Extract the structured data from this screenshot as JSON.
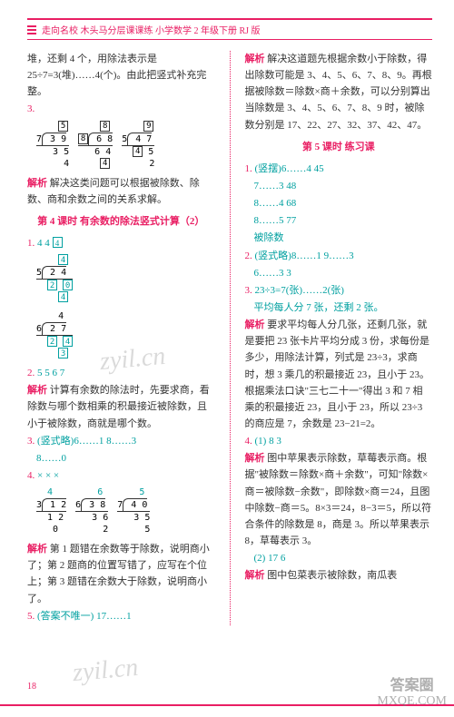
{
  "header": {
    "title": "走向名校  木头马分层课课练  小学数学 2 年级下册  RJ 版"
  },
  "col1": {
    "p1": "堆，还剩 4 个，用除法表示是 25÷7=3(堆)……4(个)。由此把竖式补充完整。",
    "q3_label": "3.",
    "q3_b1": "5",
    "q3_b2": "8",
    "q3_b3": "9",
    "q3_b4": "8",
    "q3_b5": "4",
    "analysis3": "解决这类问题可以根据被除数、除数、商和余数之间的关系求解。",
    "section4": "第 4 课时  有余数的除法竖式计算（2）",
    "q1_label": "1.",
    "q1_v1": "4",
    "q1_v2": "4",
    "q1_b1": "4",
    "q2_label": "2.",
    "q2_ans": "5  5  6  7",
    "analysis2": "计算有余数的除法时，先要求商，看除数与哪个数相乘的积最接近被除数，且小于被除数，商就是哪个数。",
    "q3b_label": "3.",
    "q3b_ans": "(竖式略)6……1  8……3",
    "q3b_ans2": "8……0",
    "q4_label": "4.",
    "q4_sym": "×  ×  ×",
    "analysis4": "第 1 题错在余数等于除数，说明商小了；第 2 题商的位置写错了，应写在个位上；第 3 题错在余数大于除数，说明商小了。",
    "q5_label": "5.",
    "q5_ans": "(答案不唯一) 17……1"
  },
  "col2": {
    "analysis_top": "解决这道题先根据余数小于除数，得出除数可能是 3、4、5、6、7、8、9。再根据被除数＝除数×商＋余数，可以分别算出当除数是 3、4、5、6、7、8、9 时，被除数分别是 17、22、27、32、37、42、47。",
    "section5": "第 5 课时  练习课",
    "q1_label": "1.",
    "q1_l1": "(竖摆)6……4  45",
    "q1_l2": "7……3  48",
    "q1_l3": "8……4  68",
    "q1_l4": "8……5  77",
    "q1_l5": "被除数",
    "q2_label": "2.",
    "q2_ans": "(竖式略)8……1  9……3",
    "q2_ans2": "6……3  3",
    "q3_label": "3.",
    "q3_ans": "23÷3=7(张)……2(张)",
    "q3_ans2": "平均每人分 7 张，还剩 2 张。",
    "analysis3": "要求平均每人分几张，还剩几张，就是要把 23 张卡片平均分成 3 份，求每份是多少，用除法计算，列式是 23÷3，求商时，想 3 乘几的积最接近 23，且小于 23。根据乘法口诀\"三七二十一\"得出 3 和 7 相乘的积最接近 23，且小于 23，所以 23÷3 的商应是 7，余数是 23−21=2。",
    "q4_label": "4.",
    "q4_ans": "(1) 8  3",
    "analysis4": "图中苹果表示除数，草莓表示商。根据\"被除数＝除数×商＋余数\"，可知\"除数×商＝被除数−余数\"，即除数×商＝24，且图中除数−商＝5。8×3＝24，8−3＝5，所以符合条件的除数是 8，商是 3。所以苹果表示 8，草莓表示 3。",
    "q4_ans2": "(2) 17  6",
    "analysis4b": "图中包菜表示被除数，南瓜表"
  },
  "page_number": "18",
  "watermark": "zyil.cn",
  "corner": {
    "top": "答案圈",
    "bottom": "MXQE.COM"
  },
  "colors": {
    "pink": "#e91e63",
    "cyan": "#00a0a0"
  }
}
